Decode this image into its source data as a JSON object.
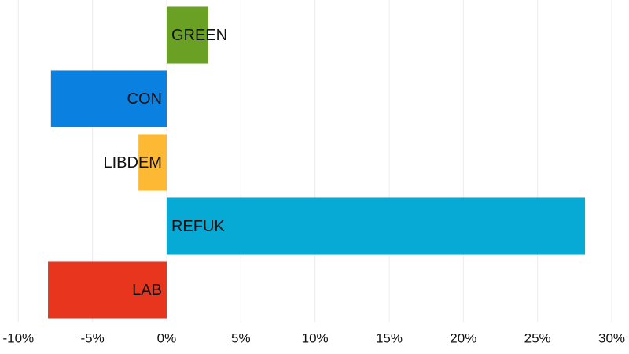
{
  "chart_data": {
    "type": "bar",
    "orientation": "horizontal",
    "categories": [
      "GREEN",
      "CON",
      "LIBDEM",
      "REFUK",
      "LAB"
    ],
    "values": [
      2.8,
      -7.8,
      -1.9,
      28.2,
      -8.0
    ],
    "colors": [
      "#6aa024",
      "#0a80e0",
      "#fdb933",
      "#07a9d5",
      "#e8361e"
    ],
    "xlim": [
      -10,
      30
    ],
    "xticks": [
      {
        "value": -10,
        "label": "-10%"
      },
      {
        "value": -5,
        "label": "-5%"
      },
      {
        "value": 0,
        "label": "0%"
      },
      {
        "value": 5,
        "label": "5%"
      },
      {
        "value": 10,
        "label": "10%"
      },
      {
        "value": 15,
        "label": "15%"
      },
      {
        "value": 20,
        "label": "20%"
      },
      {
        "value": 25,
        "label": "25%"
      },
      {
        "value": 30,
        "label": "30%"
      }
    ],
    "grid": true
  }
}
